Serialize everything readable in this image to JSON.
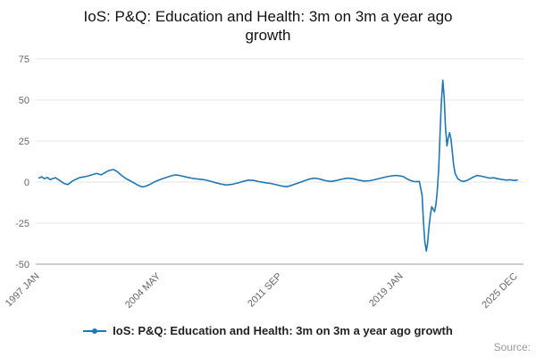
{
  "colors": {
    "line": "#1f77b4",
    "grid": "#e6e6e6",
    "axis": "#999999",
    "tick_text": "#666666"
  },
  "source_label": "Source:",
  "chart_data": {
    "type": "line",
    "title": "IoS: P&Q: Education and Health: 3m on 3m a year ago growth",
    "legend_position": "bottom",
    "grid": "horizontal",
    "xlim": [
      1996.8,
      2026.3
    ],
    "ylim": [
      -50,
      75
    ],
    "y_ticks": [
      75,
      50,
      25,
      0,
      -25,
      -50
    ],
    "x_ticks": [
      {
        "label": "1997 JAN",
        "x": 1997.04
      },
      {
        "label": "2004 MAY",
        "x": 2004.37
      },
      {
        "label": "2011 SEP",
        "x": 2011.71
      },
      {
        "label": "2019 JAN",
        "x": 2019.04
      },
      {
        "label": "2025 DEC",
        "x": 2025.96
      }
    ],
    "series": [
      {
        "name": "IoS: P&Q: Education and Health: 3m on 3m a year ago growth",
        "points": [
          [
            1997.0,
            2.5
          ],
          [
            1997.17,
            3.2
          ],
          [
            1997.33,
            2.0
          ],
          [
            1997.5,
            2.8
          ],
          [
            1997.67,
            1.5
          ],
          [
            1997.83,
            2.2
          ],
          [
            1998.0,
            2.6
          ],
          [
            1998.25,
            1.0
          ],
          [
            1998.5,
            -0.8
          ],
          [
            1998.75,
            -1.5
          ],
          [
            1999.0,
            0.5
          ],
          [
            1999.25,
            1.8
          ],
          [
            1999.5,
            2.8
          ],
          [
            1999.75,
            3.2
          ],
          [
            2000.0,
            3.8
          ],
          [
            2000.25,
            4.6
          ],
          [
            2000.5,
            5.2
          ],
          [
            2000.75,
            4.4
          ],
          [
            2001.0,
            5.8
          ],
          [
            2001.25,
            7.2
          ],
          [
            2001.5,
            7.6
          ],
          [
            2001.75,
            6.2
          ],
          [
            2002.0,
            4.0
          ],
          [
            2002.25,
            2.2
          ],
          [
            2002.5,
            0.8
          ],
          [
            2002.75,
            -0.6
          ],
          [
            2003.0,
            -2.0
          ],
          [
            2003.25,
            -3.0
          ],
          [
            2003.5,
            -2.4
          ],
          [
            2003.75,
            -1.2
          ],
          [
            2004.0,
            0.2
          ],
          [
            2004.25,
            1.2
          ],
          [
            2004.5,
            2.2
          ],
          [
            2004.75,
            3.0
          ],
          [
            2005.0,
            3.8
          ],
          [
            2005.25,
            4.4
          ],
          [
            2005.5,
            4.0
          ],
          [
            2005.75,
            3.4
          ],
          [
            2006.0,
            2.8
          ],
          [
            2006.33,
            2.2
          ],
          [
            2006.67,
            1.8
          ],
          [
            2007.0,
            1.4
          ],
          [
            2007.33,
            0.6
          ],
          [
            2007.67,
            -0.4
          ],
          [
            2008.0,
            -1.2
          ],
          [
            2008.33,
            -1.8
          ],
          [
            2008.67,
            -1.4
          ],
          [
            2009.0,
            -0.6
          ],
          [
            2009.33,
            0.4
          ],
          [
            2009.67,
            1.2
          ],
          [
            2010.0,
            1.0
          ],
          [
            2010.33,
            0.2
          ],
          [
            2010.67,
            -0.4
          ],
          [
            2011.0,
            -0.8
          ],
          [
            2011.33,
            -1.6
          ],
          [
            2011.67,
            -2.4
          ],
          [
            2012.0,
            -2.8
          ],
          [
            2012.33,
            -1.8
          ],
          [
            2012.67,
            -0.6
          ],
          [
            2013.0,
            0.6
          ],
          [
            2013.33,
            1.8
          ],
          [
            2013.67,
            2.4
          ],
          [
            2014.0,
            1.8
          ],
          [
            2014.33,
            0.8
          ],
          [
            2014.67,
            0.4
          ],
          [
            2015.0,
            1.0
          ],
          [
            2015.33,
            1.8
          ],
          [
            2015.67,
            2.4
          ],
          [
            2016.0,
            2.0
          ],
          [
            2016.33,
            1.2
          ],
          [
            2016.67,
            0.6
          ],
          [
            2017.0,
            0.8
          ],
          [
            2017.33,
            1.6
          ],
          [
            2017.67,
            2.4
          ],
          [
            2018.0,
            3.2
          ],
          [
            2018.33,
            3.8
          ],
          [
            2018.67,
            4.0
          ],
          [
            2019.0,
            3.4
          ],
          [
            2019.25,
            2.0
          ],
          [
            2019.5,
            0.8
          ],
          [
            2019.75,
            0.2
          ],
          [
            2020.0,
            0.4
          ],
          [
            2020.17,
            -8.0
          ],
          [
            2020.25,
            -24.0
          ],
          [
            2020.33,
            -36.0
          ],
          [
            2020.42,
            -42.0
          ],
          [
            2020.5,
            -37.0
          ],
          [
            2020.58,
            -28.0
          ],
          [
            2020.67,
            -20.0
          ],
          [
            2020.75,
            -15.0
          ],
          [
            2020.83,
            -16.5
          ],
          [
            2020.92,
            -18.0
          ],
          [
            2021.0,
            -14.0
          ],
          [
            2021.08,
            -6.0
          ],
          [
            2021.17,
            8.0
          ],
          [
            2021.25,
            28.0
          ],
          [
            2021.33,
            48.0
          ],
          [
            2021.42,
            62.0
          ],
          [
            2021.5,
            52.0
          ],
          [
            2021.58,
            34.0
          ],
          [
            2021.67,
            22.0
          ],
          [
            2021.75,
            27.0
          ],
          [
            2021.83,
            30.0
          ],
          [
            2021.92,
            26.0
          ],
          [
            2022.0,
            18.0
          ],
          [
            2022.08,
            10.0
          ],
          [
            2022.17,
            5.0
          ],
          [
            2022.33,
            2.0
          ],
          [
            2022.5,
            0.8
          ],
          [
            2022.67,
            0.4
          ],
          [
            2022.83,
            0.8
          ],
          [
            2023.0,
            1.6
          ],
          [
            2023.25,
            3.0
          ],
          [
            2023.5,
            4.0
          ],
          [
            2023.75,
            3.6
          ],
          [
            2024.0,
            3.0
          ],
          [
            2024.25,
            2.4
          ],
          [
            2024.5,
            2.6
          ],
          [
            2024.75,
            2.0
          ],
          [
            2025.0,
            1.6
          ],
          [
            2025.25,
            1.2
          ],
          [
            2025.5,
            1.4
          ],
          [
            2025.75,
            1.0
          ],
          [
            2025.92,
            1.2
          ]
        ]
      }
    ]
  }
}
